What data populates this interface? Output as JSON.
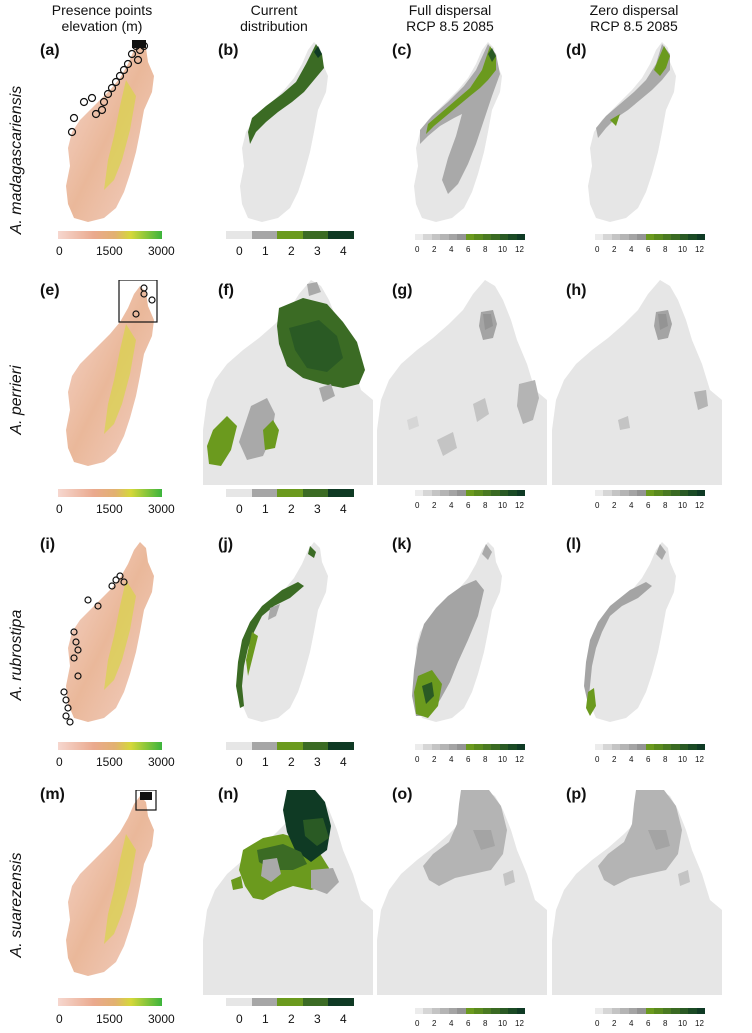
{
  "column_titles": [
    "Presence points\nelevation (m)",
    "Current\ndistribution",
    "Full dispersal\nRCP 8.5 2085",
    "Zero dispersal\nRCP 8.5 2085"
  ],
  "rows": [
    {
      "species": "A. madagascariensis",
      "letters": [
        "(a)",
        "(b)",
        "(c)",
        "(d)"
      ]
    },
    {
      "species": "A. perrieri",
      "letters": [
        "(e)",
        "(f)",
        "(g)",
        "(h)"
      ]
    },
    {
      "species": "A. rubrostipa",
      "letters": [
        "(i)",
        "(j)",
        "(k)",
        "(l)"
      ]
    },
    {
      "species": "A. suarezensis",
      "letters": [
        "(m)",
        "(n)",
        "(o)",
        "(p)"
      ]
    }
  ],
  "legends": {
    "elevation": {
      "ticks": [
        "0",
        "1500",
        "3000"
      ],
      "colors": [
        "#f6d7cf",
        "#eaa98d",
        "#e2b170",
        "#d5d83a",
        "#3cb43c"
      ]
    },
    "current": {
      "ticks": [
        "0",
        "1",
        "2",
        "3",
        "4"
      ],
      "colors": [
        "#e6e6e6",
        "#a6a6a6",
        "#6b9a1e",
        "#3b6b24",
        "#0f3a24"
      ]
    },
    "future": {
      "ticks": [
        "0",
        "2",
        "4",
        "6",
        "8",
        "10",
        "12"
      ],
      "colors": [
        "#ececec",
        "#d6d6d6",
        "#c4c4c4",
        "#b4b4b4",
        "#a4a4a4",
        "#949494",
        "#6b9a1e",
        "#5a8a1e",
        "#4a7a22",
        "#3a6a22",
        "#2a5a24",
        "#1a4a24",
        "#0f3a24"
      ]
    }
  },
  "colors": {
    "land": "#e6e6e6",
    "grey_suitable": "#a9a9a9",
    "green_suitable": "#4a7a22",
    "dark_green": "#0f3a24",
    "presence_point": "#111111"
  }
}
